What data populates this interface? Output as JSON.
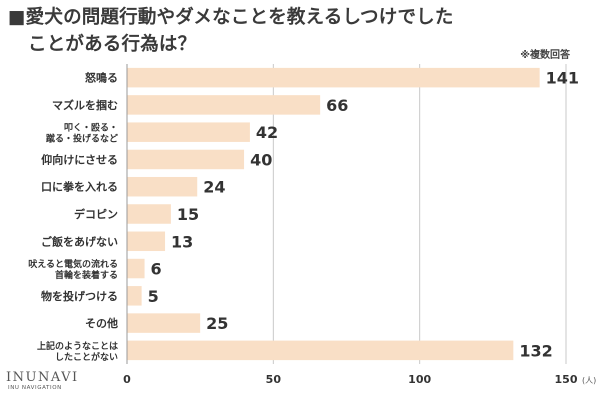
{
  "title": {
    "line1": "■愛犬の問題行動やダメなことを教えるしつけでした",
    "line2": "ことがある行為は？"
  },
  "note": "※複数回答",
  "logo": {
    "name": "INUNAVI",
    "tagline": "INU NAVIGATION"
  },
  "colors": {
    "bar": "#f9dfc6",
    "grid": "#c9c9c9",
    "text": "#333333"
  },
  "chart_data": {
    "type": "bar",
    "orientation": "horizontal",
    "categories": [
      [
        "怒鳴る"
      ],
      [
        "マズルを掴む"
      ],
      [
        "叩く・殴る・",
        "蹴る・投げるなど"
      ],
      [
        "仰向けにさせる"
      ],
      [
        "口に拳を入れる"
      ],
      [
        "デコピン"
      ],
      [
        "ご飯をあげない"
      ],
      [
        "吠えると電気の流れる",
        "首輪を装着する"
      ],
      [
        "物を投げつける"
      ],
      [
        "その他"
      ],
      [
        "上記のようなことは",
        "したことがない"
      ]
    ],
    "values": [
      141,
      66,
      42,
      40,
      24,
      15,
      13,
      6,
      5,
      25,
      132
    ],
    "xlim": [
      0,
      150
    ],
    "xticks": [
      0,
      50,
      100,
      150
    ],
    "unit": "(人)",
    "grid": true
  }
}
